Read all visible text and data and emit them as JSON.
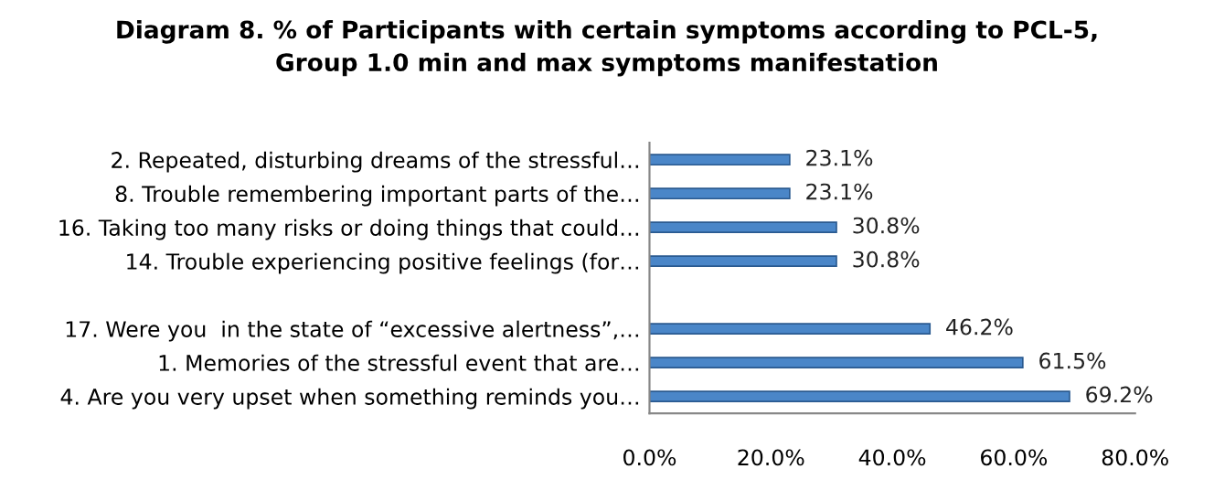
{
  "chart_data": {
    "type": "bar",
    "orientation": "horizontal",
    "title": "Diagram 8. % of Participants with certain symptoms according to PCL-5,\nGroup 1.0 min and max symptoms manifestation",
    "categories": [
      "2. Repeated, disturbing dreams of the stressful…",
      "8. Trouble remembering important parts of the…",
      "16. Taking too many risks or doing things that could…",
      "14. Trouble experiencing positive feelings (for…",
      null,
      "17. Were you  in the state of “excessive alertness”,…",
      "1. Memories of the stressful event that are…",
      "4. Are you very upset when something reminds you…"
    ],
    "values": [
      23.1,
      23.1,
      30.8,
      30.8,
      null,
      46.2,
      61.5,
      69.2
    ],
    "value_labels": [
      "23.1%",
      "23.1%",
      "30.8%",
      "30.8%",
      null,
      "46.2%",
      "61.5%",
      "69.2%"
    ],
    "color": "#4a86c8",
    "xlim": [
      0,
      80
    ],
    "xticks": [
      {
        "value": 0,
        "label": "0.0%"
      },
      {
        "value": 20,
        "label": "20.0%"
      },
      {
        "value": 40,
        "label": "40.0%"
      },
      {
        "value": 60,
        "label": "60.0%"
      },
      {
        "value": 80,
        "label": "80.0%"
      }
    ],
    "grid": false
  }
}
